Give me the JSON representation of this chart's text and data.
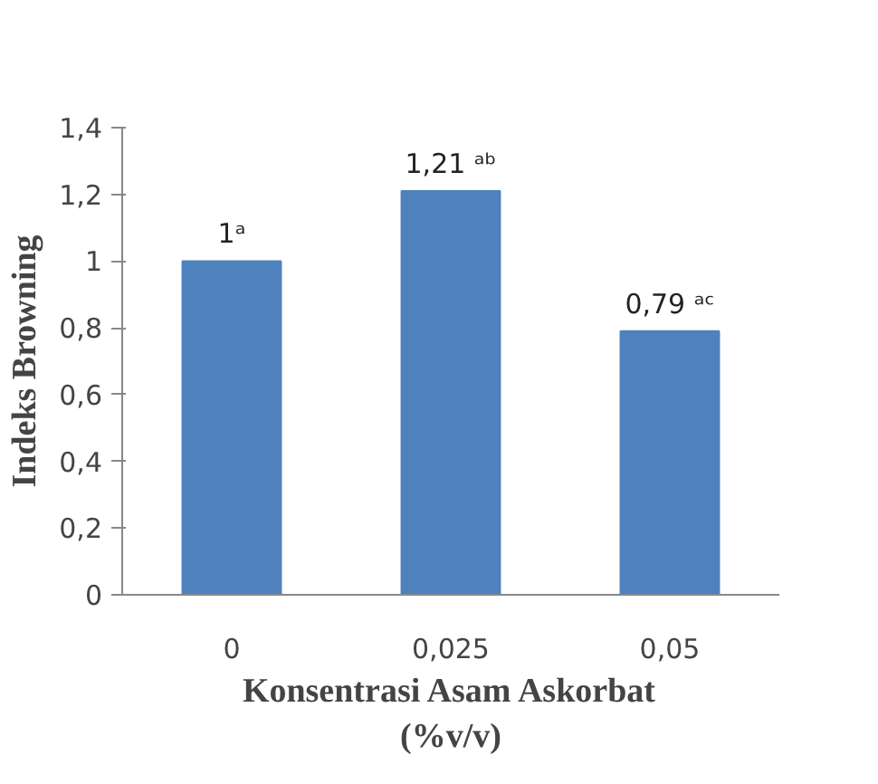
{
  "chart_data": {
    "type": "bar",
    "xlabel": "Konsentrasi Asam Askorbat\n(%v/v)",
    "ylabel": "Indeks Browning",
    "categories": [
      "0",
      "0,025",
      "0,05"
    ],
    "values": [
      1,
      1.21,
      0.79
    ],
    "color": "#4f81bd",
    "value_labels": [
      "1ᵃ",
      "1,21 ᵃᵇ",
      "0,79 ᵃᶜ"
    ],
    "ylim": [
      0,
      1.4
    ],
    "yticks": [
      0,
      {
        "value": 0.2,
        "label": "0,2"
      },
      {
        "value": 0.4,
        "label": "0,4"
      },
      {
        "value": 0.6,
        "label": "0,6"
      },
      {
        "value": 0.8,
        "label": "0,8"
      },
      1,
      {
        "value": 1.2,
        "label": "1,2"
      },
      {
        "value": 1.4,
        "label": "1,4"
      }
    ],
    "grid": false
  }
}
